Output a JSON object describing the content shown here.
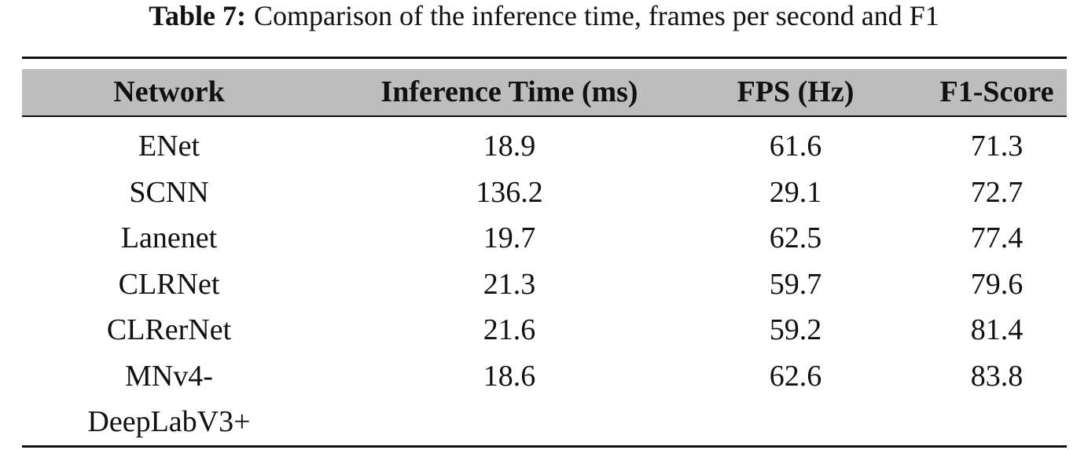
{
  "caption": {
    "label": "Table 7:",
    "text": "Comparison of the inference time, frames per second and F1"
  },
  "table": {
    "header": [
      "Network",
      "Inference Time (ms)",
      "FPS (Hz)",
      "F1-Score"
    ],
    "rows": [
      [
        "ENet",
        "18.9",
        "61.6",
        "71.3"
      ],
      [
        "SCNN",
        "136.2",
        "29.1",
        "72.7"
      ],
      [
        "Lanenet",
        "19.7",
        "62.5",
        "77.4"
      ],
      [
        "CLRNet",
        "21.3",
        "59.7",
        "79.6"
      ],
      [
        "CLRerNet",
        "21.6",
        "59.2",
        "81.4"
      ],
      [
        "MNv4-DeepLabV3+",
        "18.6",
        "62.6",
        "83.8"
      ]
    ]
  }
}
